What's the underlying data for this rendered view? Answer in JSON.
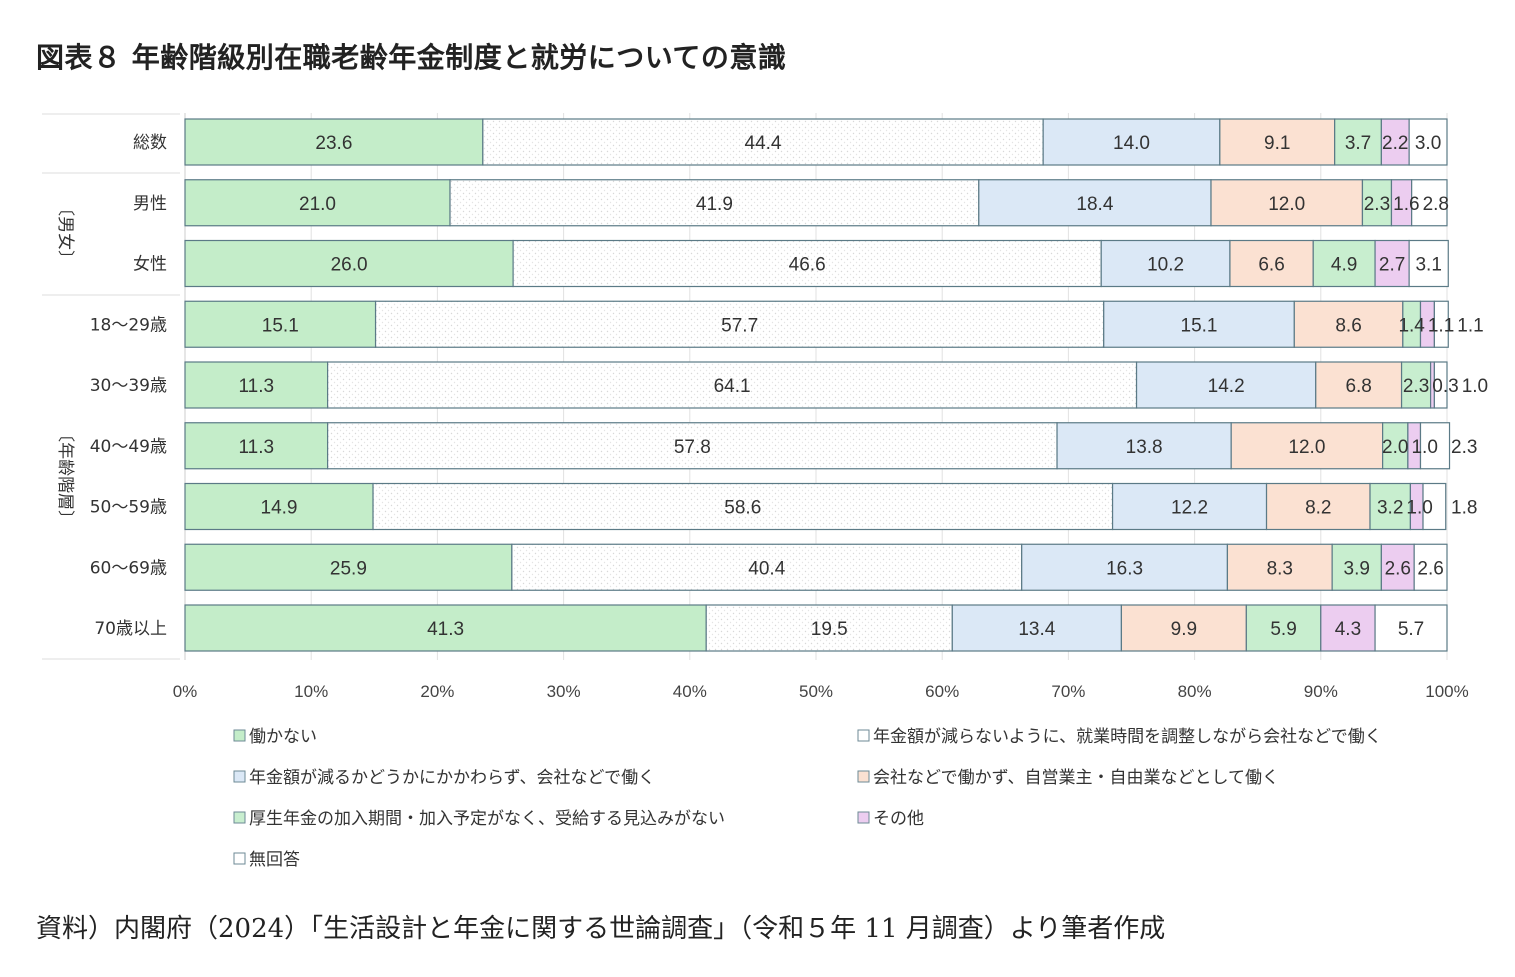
{
  "title": "図表８ 年齢階級別在職老齢年金制度と就労についての意識",
  "source": "資料）内閣府（2024）「生活設計と年金に関する世論調査」（令和５年 11 月調査）より筆者作成",
  "chart_data": {
    "type": "bar",
    "orientation": "horizontal",
    "stacked": "percent",
    "xlim": [
      0,
      100
    ],
    "xticks": [
      "0%",
      "10%",
      "20%",
      "30%",
      "40%",
      "50%",
      "60%",
      "70%",
      "80%",
      "90%",
      "100%"
    ],
    "grid": true,
    "legend_position": "bottom",
    "groups": [
      {
        "label": "",
        "categories": [
          "総数"
        ]
      },
      {
        "label": "〔男女〕",
        "categories": [
          "男性",
          "女性"
        ]
      },
      {
        "label": "〔年齢階層〕",
        "categories": [
          "18〜29歳",
          "30〜39歳",
          "40〜49歳",
          "50〜59歳",
          "60〜69歳",
          "70歳以上"
        ]
      }
    ],
    "categories": [
      "総数",
      "男性",
      "女性",
      "18〜29歳",
      "30〜39歳",
      "40〜49歳",
      "50〜59歳",
      "60〜69歳",
      "70歳以上"
    ],
    "series": [
      {
        "name": "働かない",
        "color": "#c4edc9",
        "values": [
          23.6,
          21.0,
          26.0,
          15.1,
          11.3,
          11.3,
          14.9,
          25.9,
          41.3
        ]
      },
      {
        "name": "年金額が減らないように、就業時間を調整しながら会社などで働く",
        "color": "#ffffff",
        "pattern": "dots",
        "values": [
          44.4,
          41.9,
          46.6,
          57.7,
          64.1,
          57.8,
          58.6,
          40.4,
          19.5
        ]
      },
      {
        "name": "年金額が減るかどうかにかかわらず、会社などで働く",
        "color": "#dbe8f6",
        "values": [
          14.0,
          18.4,
          10.2,
          15.1,
          14.2,
          13.8,
          12.2,
          16.3,
          13.4
        ]
      },
      {
        "name": "会社などで働かず、自営業主・自由業などとして働く",
        "color": "#fbe1d2",
        "values": [
          9.1,
          12.0,
          6.6,
          8.6,
          6.8,
          12.0,
          8.2,
          8.3,
          9.9
        ]
      },
      {
        "name": "厚生年金の加入期間・加入予定がなく、受給する見込みがない",
        "color": "#c8eecf",
        "values": [
          3.7,
          2.3,
          4.9,
          1.4,
          2.3,
          2.0,
          3.2,
          3.9,
          5.9
        ]
      },
      {
        "name": "その他",
        "color": "#eccdf0",
        "values": [
          2.2,
          1.6,
          2.7,
          1.1,
          0.3,
          1.0,
          1.0,
          2.6,
          4.3
        ]
      },
      {
        "name": "無回答",
        "color": "#ffffff",
        "values": [
          3.0,
          2.8,
          3.1,
          1.1,
          1.0,
          2.3,
          1.8,
          2.6,
          5.7
        ]
      }
    ]
  }
}
